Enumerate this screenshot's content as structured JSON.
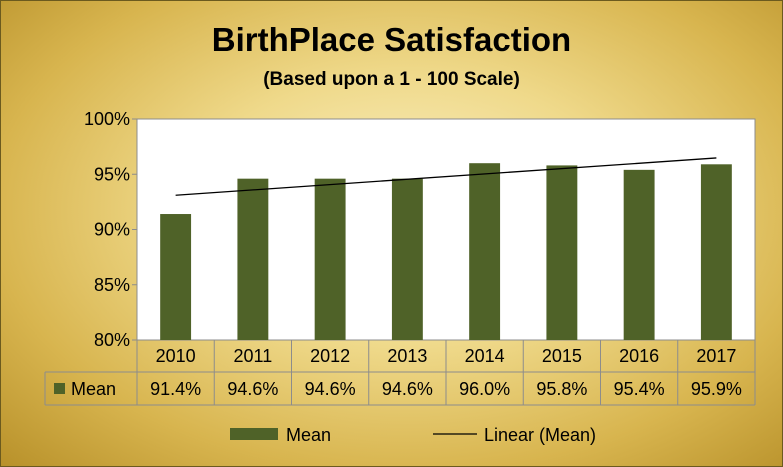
{
  "chart_data": {
    "type": "bar",
    "title": "BirthPlace Satisfaction",
    "subtitle": "(Based upon a 1 - 100 Scale)",
    "categories": [
      "2010",
      "2011",
      "2012",
      "2013",
      "2014",
      "2015",
      "2016",
      "2017"
    ],
    "series": [
      {
        "name": "Mean",
        "values": [
          91.4,
          94.6,
          94.6,
          94.6,
          96.0,
          95.8,
          95.4,
          95.9
        ],
        "labels": [
          "91.4%",
          "94.6%",
          "94.6%",
          "94.6%",
          "96.0%",
          "95.8%",
          "95.4%",
          "95.9%"
        ]
      }
    ],
    "trendline": {
      "name": "Linear (Mean)",
      "type": "linear"
    },
    "yticks": [
      80,
      85,
      90,
      95,
      100
    ],
    "ytick_labels": [
      "80%",
      "85%",
      "90%",
      "95%",
      "100%"
    ],
    "ylim": [
      80,
      100
    ],
    "grid": false,
    "data_table": true,
    "legend_position": "bottom",
    "colors": {
      "bar": "#4f6228",
      "trendline": "#000000",
      "plot_bg": "#ffffff"
    }
  }
}
